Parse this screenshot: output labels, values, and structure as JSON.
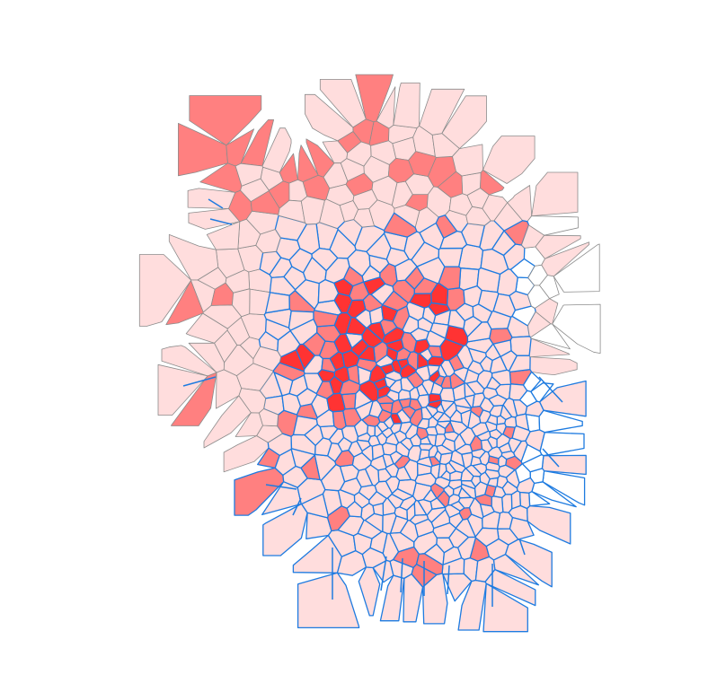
{
  "figure": {
    "type": "voronoi-tessellation",
    "background": "#ffffff",
    "palette": {
      "white": "#ffffff",
      "pale": "#ffdddd",
      "light": "#ff9999",
      "medium": "#ff8080",
      "strong": "#ff3333"
    },
    "edge_colors": {
      "inner": "#1e7be0",
      "outer": "#8c8c8c"
    },
    "fill_levels": [
      "white",
      "pale",
      "light",
      "medium",
      "strong"
    ],
    "has_title": false,
    "has_legend": false,
    "has_axes": false
  }
}
